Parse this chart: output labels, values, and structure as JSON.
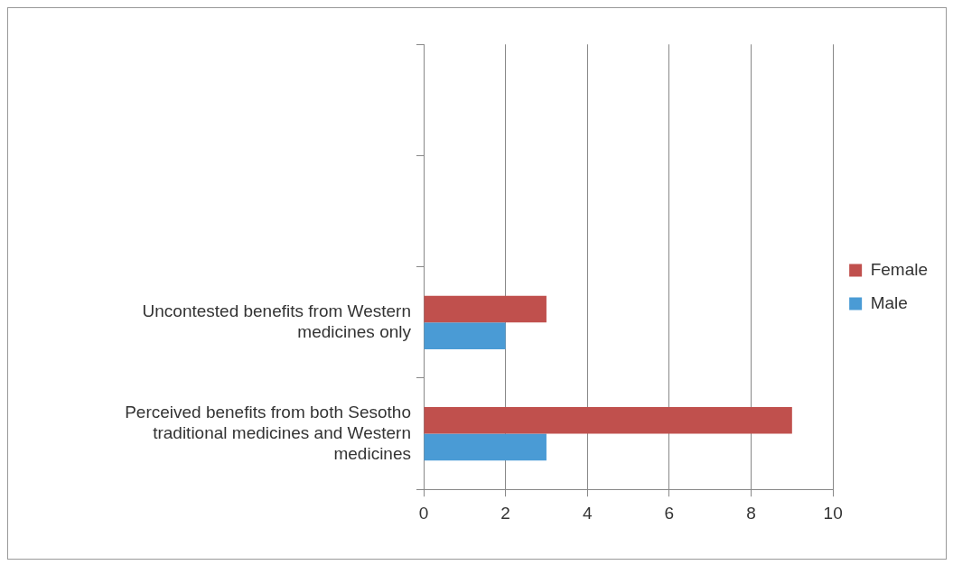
{
  "chart_data": {
    "type": "bar",
    "orientation": "horizontal",
    "categories": [
      null,
      null,
      "Uncontested benefits from Western medicines only",
      "Perceived benefits from both Sesotho traditional medicines and Western medicines"
    ],
    "series": [
      {
        "name": "Female",
        "color": "#c0504d",
        "values": [
          null,
          null,
          3,
          9
        ]
      },
      {
        "name": "Male",
        "color": "#4a9bd5",
        "values": [
          null,
          null,
          2,
          3
        ]
      }
    ],
    "xlim": [
      0,
      10
    ],
    "xticks": [
      0,
      2,
      4,
      6,
      8,
      10
    ],
    "grid": "x",
    "legend": "right"
  }
}
